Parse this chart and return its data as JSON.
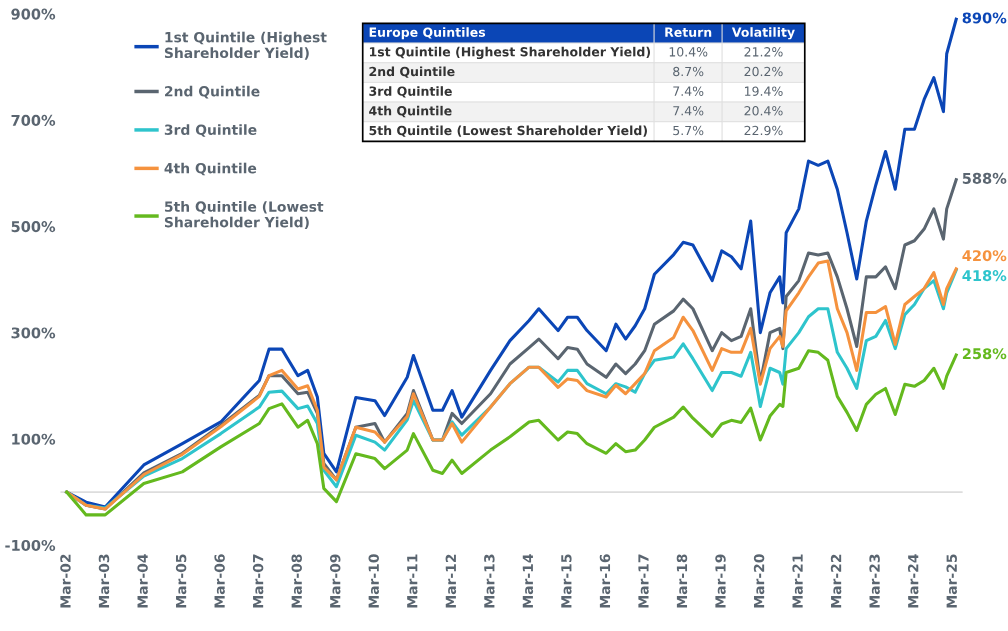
{
  "chart_data": {
    "type": "line",
    "x": [
      "2002-03",
      "2002-09",
      "2003-03",
      "2004-03",
      "2005-03",
      "2006-03",
      "2007-03",
      "2007-06",
      "2007-10",
      "2008-03",
      "2008-06",
      "2008-09",
      "2008-11",
      "2009-03",
      "2009-09",
      "2010-03",
      "2010-06",
      "2011-01",
      "2011-03",
      "2011-09",
      "2011-12",
      "2012-03",
      "2012-06",
      "2013-03",
      "2013-09",
      "2014-03",
      "2014-06",
      "2014-12",
      "2015-03",
      "2015-06",
      "2015-09",
      "2016-03",
      "2016-06",
      "2016-09",
      "2016-12",
      "2017-03",
      "2017-06",
      "2017-12",
      "2018-03",
      "2018-06",
      "2018-12",
      "2019-03",
      "2019-06",
      "2019-09",
      "2019-12",
      "2020-03",
      "2020-06",
      "2020-09",
      "2020-10",
      "2020-11",
      "2021-03",
      "2021-06",
      "2021-09",
      "2021-12",
      "2022-03",
      "2022-06",
      "2022-09",
      "2022-12",
      "2023-03",
      "2023-06",
      "2023-09",
      "2023-12",
      "2024-03",
      "2024-06",
      "2024-09",
      "2024-12",
      "2025-01",
      "2025-04"
    ],
    "series": [
      {
        "name": "1st Quintile (Highest\nShareholder Yield)",
        "color": "#0b46b6",
        "values": [
          0,
          -19,
          -28,
          51,
          91,
          132,
          210,
          269,
          269,
          219,
          229,
          179,
          73,
          38,
          178,
          172,
          144,
          216,
          257,
          154,
          154,
          191,
          141,
          229,
          285,
          323,
          345,
          304,
          329,
          329,
          304,
          266,
          316,
          288,
          313,
          345,
          410,
          447,
          470,
          465,
          398,
          454,
          443,
          420,
          510,
          300,
          375,
          405,
          356,
          488,
          533,
          623,
          615,
          623,
          570,
          488,
          401,
          510,
          578,
          641,
          570,
          683,
          683,
          739,
          780,
          716,
          825,
          890
        ]
      },
      {
        "name": "2nd Quintile",
        "color": "#5a6570",
        "values": [
          0,
          -25,
          -32,
          36,
          73,
          126,
          182,
          219,
          219,
          185,
          188,
          148,
          54,
          23,
          122,
          129,
          94,
          148,
          191,
          98,
          98,
          148,
          129,
          185,
          241,
          272,
          288,
          251,
          272,
          269,
          241,
          216,
          241,
          223,
          241,
          266,
          316,
          341,
          363,
          345,
          266,
          300,
          285,
          293,
          345,
          206,
          300,
          308,
          270,
          368,
          398,
          450,
          446,
          450,
          405,
          345,
          274,
          405,
          405,
          424,
          383,
          465,
          473,
          495,
          533,
          476,
          533,
          588
        ]
      },
      {
        "name": "3rd Quintile",
        "color": "#2ec4cc",
        "values": [
          0,
          -25,
          -30,
          30,
          63,
          110,
          160,
          188,
          190,
          157,
          162,
          129,
          41,
          10,
          107,
          94,
          79,
          136,
          172,
          98,
          98,
          132,
          107,
          160,
          204,
          235,
          235,
          207,
          229,
          229,
          204,
          185,
          204,
          198,
          188,
          223,
          248,
          254,
          279,
          251,
          191,
          225,
          225,
          218,
          263,
          161,
          233,
          225,
          203,
          270,
          300,
          330,
          345,
          345,
          263,
          233,
          195,
          285,
          293,
          323,
          270,
          334,
          353,
          383,
          398,
          345,
          375,
          418
        ]
      },
      {
        "name": "4th Quintile",
        "color": "#f5923e",
        "values": [
          0,
          -25,
          -32,
          33,
          71,
          123,
          180,
          219,
          229,
          194,
          200,
          154,
          47,
          23,
          122,
          113,
          94,
          142,
          185,
          98,
          98,
          129,
          94,
          160,
          204,
          235,
          235,
          197,
          213,
          210,
          191,
          179,
          201,
          185,
          204,
          223,
          266,
          291,
          329,
          304,
          229,
          270,
          263,
          263,
          308,
          203,
          270,
          293,
          274,
          341,
          375,
          405,
          431,
          435,
          345,
          300,
          229,
          338,
          338,
          349,
          278,
          353,
          368,
          383,
          413,
          353,
          383,
          420
        ]
      },
      {
        "name": "5th Quintile (Lowest\nShareholder Yield)",
        "color": "#64b91e",
        "values": [
          0,
          -43,
          -43,
          16,
          38,
          85,
          129,
          157,
          166,
          122,
          135,
          91,
          7,
          -18,
          72,
          63,
          44,
          79,
          110,
          41,
          35,
          60,
          35,
          79,
          104,
          132,
          135,
          98,
          113,
          110,
          91,
          73,
          91,
          76,
          79,
          98,
          122,
          141,
          160,
          139,
          105,
          128,
          135,
          131,
          158,
          98,
          143,
          165,
          161,
          225,
          233,
          266,
          263,
          248,
          180,
          150,
          116,
          165,
          184,
          195,
          146,
          203,
          199,
          210,
          233,
          195,
          218,
          258
        ]
      }
    ],
    "xlim": [
      "2002-01",
      "2025-06"
    ],
    "xticks": [
      {
        "value": "2002-03",
        "label": "Mar-02"
      },
      {
        "value": "2003-03",
        "label": "Mar-03"
      },
      {
        "value": "2004-03",
        "label": "Mar-04"
      },
      {
        "value": "2005-03",
        "label": "Mar-05"
      },
      {
        "value": "2006-03",
        "label": "Mar-06"
      },
      {
        "value": "2007-03",
        "label": "Mar-07"
      },
      {
        "value": "2008-03",
        "label": "Mar-08"
      },
      {
        "value": "2009-03",
        "label": "Mar-09"
      },
      {
        "value": "2010-03",
        "label": "Mar-10"
      },
      {
        "value": "2011-03",
        "label": "Mar-11"
      },
      {
        "value": "2012-03",
        "label": "Mar-12"
      },
      {
        "value": "2013-03",
        "label": "Mar-13"
      },
      {
        "value": "2014-03",
        "label": "Mar-14"
      },
      {
        "value": "2015-03",
        "label": "Mar-15"
      },
      {
        "value": "2016-03",
        "label": "Mar-16"
      },
      {
        "value": "2017-03",
        "label": "Mar-17"
      },
      {
        "value": "2018-03",
        "label": "Mar-18"
      },
      {
        "value": "2019-03",
        "label": "Mar-19"
      },
      {
        "value": "2020-03",
        "label": "Mar-20"
      },
      {
        "value": "2021-03",
        "label": "Mar-21"
      },
      {
        "value": "2022-03",
        "label": "Mar-22"
      },
      {
        "value": "2023-03",
        "label": "Mar-23"
      },
      {
        "value": "2024-03",
        "label": "Mar-24"
      },
      {
        "value": "2025-03",
        "label": "Mar-25"
      }
    ],
    "ylim": [
      -100,
      900
    ],
    "yticks": [
      {
        "value": -100,
        "label": "-100%"
      },
      {
        "value": 100,
        "label": "100%"
      },
      {
        "value": 300,
        "label": "300%"
      },
      {
        "value": 500,
        "label": "500%"
      },
      {
        "value": 700,
        "label": "700%"
      },
      {
        "value": 900,
        "label": "900%"
      }
    ],
    "ref_lines": [
      {
        "axis": "y",
        "value": 0,
        "color": "#dddddd"
      }
    ],
    "grid": false,
    "legend": "top left",
    "marker": "none",
    "line_style": "solid",
    "annotations": [
      "Europe Quintiles",
      "Return",
      "Volatility",
      "1st Quintile (Highest Shareholder Yield)",
      "10.4%",
      "21.2%",
      "2nd Quintile",
      "8.7%",
      "20.2%",
      "3rd Quintile",
      "7.4%",
      "19.4%",
      "4th Quintile",
      "7.4%",
      "20.4%",
      "5th Quintile (Lowest Shareholder Yield)",
      "5.7%",
      "22.9%",
      {
        "text": "890%",
        "x": "2025-04",
        "y": 890
      },
      {
        "text": "588%",
        "x": "2025-04",
        "y": 588
      },
      {
        "text": "420%",
        "x": "2025-04",
        "y": 420
      },
      {
        "text": "418%",
        "x": "2025-04",
        "y": 418
      },
      {
        "text": "258%",
        "x": "2025-04",
        "y": 258
      }
    ]
  }
}
